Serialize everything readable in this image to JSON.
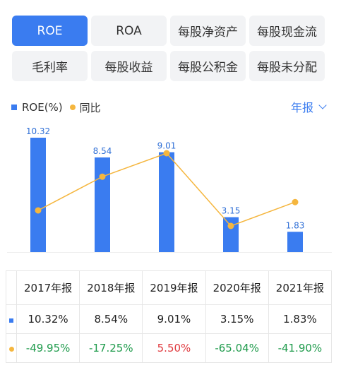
{
  "tabs": [
    "ROE",
    "ROA",
    "每股净资产",
    "每股现金流",
    "毛利率",
    "每股收益",
    "每股公积金",
    "每股未分配"
  ],
  "active_tab": 0,
  "legend": {
    "series1": "ROE(%)",
    "series2": "同比"
  },
  "period_label": "年报",
  "colors": {
    "accent": "#3a7cf0",
    "line": "#f5b63e",
    "negative": "#1f9b4c",
    "positive": "#e0393e"
  },
  "chart_data": {
    "type": "bar",
    "categories": [
      "2017年报",
      "2018年报",
      "2019年报",
      "2020年报",
      "2021年报"
    ],
    "series": [
      {
        "name": "ROE(%)",
        "type": "bar",
        "values": [
          10.32,
          8.54,
          9.01,
          3.15,
          1.83
        ]
      },
      {
        "name": "同比",
        "type": "line",
        "values": [
          -49.95,
          -17.25,
          5.5,
          -65.04,
          -41.9
        ]
      }
    ],
    "bar_labels": [
      "10.32",
      "8.54",
      "9.01",
      "3.15",
      "1.83"
    ],
    "grid": false,
    "legend_position": "top-left"
  },
  "table": {
    "headers": [
      "2017年报",
      "2018年报",
      "2019年报",
      "2020年报",
      "2021年报"
    ],
    "roe_row": [
      "10.32%",
      "8.54%",
      "9.01%",
      "3.15%",
      "1.83%"
    ],
    "yoy_row": [
      "-49.95%",
      "-17.25%",
      "5.50%",
      "-65.04%",
      "-41.90%"
    ]
  }
}
